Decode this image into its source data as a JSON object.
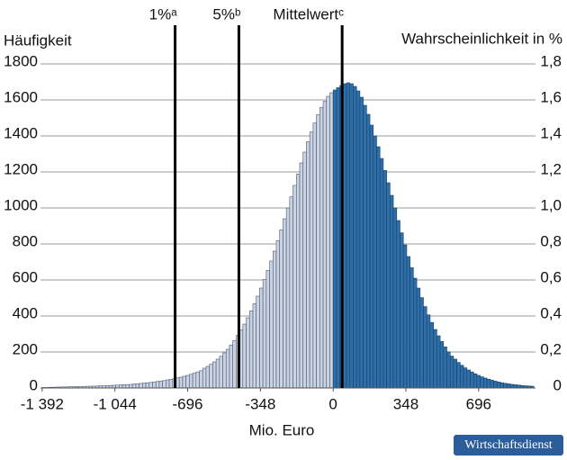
{
  "chart_data": {
    "type": "histogram",
    "ylabel": "Häufigkeit",
    "y2label": "Wahrscheinlichkeit in %",
    "xlabel": "Mio. Euro",
    "series": [
      {
        "color": "#c9d3e3",
        "edge_color": "#4d5a70",
        "bins": [
          -1392,
          -1376,
          -1360,
          -1344,
          -1328,
          -1312,
          -1296,
          -1280,
          -1264,
          -1248,
          -1232,
          -1216,
          -1200,
          -1184,
          -1168,
          -1152,
          -1136,
          -1120,
          -1104,
          -1088,
          -1072,
          -1056,
          -1040,
          -1024,
          -1008,
          -992,
          -976,
          -960,
          -944,
          -928,
          -912,
          -896,
          -880,
          -864,
          -848,
          -832,
          -816,
          -800,
          -784,
          -768,
          -752,
          -736,
          -720,
          -704,
          -688,
          -672,
          -656,
          -640,
          -624,
          -608,
          -592,
          -576,
          -560,
          -544,
          -528,
          -512,
          -496,
          -480,
          -464,
          -448,
          -432,
          -416,
          -400,
          -384,
          -368,
          -352,
          -336,
          -320,
          -304,
          -288,
          -272,
          -256,
          -240,
          -224,
          -208,
          -192,
          -176,
          -160,
          -144,
          -128,
          -112,
          -96,
          -80,
          -64,
          -48,
          -32,
          -16,
          0
        ],
        "values": [
          3,
          3,
          4,
          4,
          5,
          5,
          6,
          6,
          7,
          7,
          8,
          8,
          9,
          9,
          10,
          10,
          11,
          12,
          12,
          13,
          14,
          15,
          16,
          17,
          18,
          19,
          20,
          22,
          23,
          25,
          27,
          29,
          31,
          33,
          36,
          38,
          41,
          45,
          48,
          52,
          56,
          60,
          65,
          70,
          76,
          82,
          89,
          96,
          110,
          120,
          132,
          145,
          160,
          176,
          195,
          215,
          238,
          264,
          292,
          323,
          355,
          390,
          428,
          468,
          510,
          555,
          603,
          653,
          705,
          760,
          818,
          878,
          940,
          1000,
          1062,
          1125,
          1188,
          1250,
          1310,
          1368,
          1422,
          1472,
          1518,
          1558,
          1592,
          1620,
          1640
        ]
      },
      {
        "color": "#2f6fa8",
        "edge_color": "#173f6b",
        "bins": [
          0,
          16,
          32,
          48,
          64,
          80,
          96,
          112,
          128,
          144,
          160,
          176,
          192,
          208,
          224,
          240,
          256,
          272,
          288,
          304,
          320,
          336,
          352,
          368,
          384,
          400,
          416,
          432,
          448,
          464,
          480,
          496,
          512,
          528,
          544,
          560,
          576,
          592,
          608,
          624,
          640,
          656,
          672,
          688,
          704,
          720,
          736,
          752,
          768,
          784,
          800,
          816,
          832,
          848,
          864,
          880,
          896,
          912,
          928,
          944,
          960
        ],
        "values": [
          1655,
          1668,
          1680,
          1690,
          1695,
          1690,
          1675,
          1650,
          1615,
          1570,
          1520,
          1460,
          1400,
          1340,
          1275,
          1208,
          1140,
          1070,
          1000,
          930,
          862,
          795,
          730,
          668,
          610,
          555,
          502,
          452,
          406,
          364,
          325,
          290,
          258,
          228,
          201,
          177,
          160,
          142,
          126,
          112,
          100,
          89,
          79,
          70,
          62,
          55,
          49,
          43,
          38,
          33,
          29,
          26,
          23,
          20,
          18,
          16,
          14,
          12,
          11,
          10
        ]
      }
    ],
    "xlim": [
      -1400,
      968
    ],
    "xticks": [
      {
        "value": -1392,
        "label": "-1 392"
      },
      {
        "value": -1044,
        "label": "-1 044"
      },
      -696,
      -348,
      0,
      348,
      696
    ],
    "ylim": [
      0,
      1800
    ],
    "yticks": [
      0,
      200,
      400,
      600,
      800,
      1000,
      1200,
      1400,
      1600,
      1800
    ],
    "y2lim": [
      0,
      1.8
    ],
    "y2ticks": [
      0,
      {
        "value": 0.2,
        "label": "0,2"
      },
      {
        "value": 0.4,
        "label": "0,4"
      },
      {
        "value": 0.6,
        "label": "0,6"
      },
      {
        "value": 0.8,
        "label": "0,8"
      },
      {
        "value": 1.0,
        "label": "1,0"
      },
      {
        "value": 1.2,
        "label": "1,2"
      },
      {
        "value": 1.4,
        "label": "1,4"
      },
      {
        "value": 1.6,
        "label": "1,6"
      },
      {
        "value": 1.8,
        "label": "1,8"
      }
    ],
    "grid": true,
    "annotations": [
      {
        "x": -756,
        "label": "1%ᵃ"
      },
      {
        "x": -451,
        "label": "5%ᵇ"
      },
      {
        "x": 43,
        "label": "Mittelwertᶜ"
      }
    ],
    "brand": "Wirtschaftsdienst"
  }
}
